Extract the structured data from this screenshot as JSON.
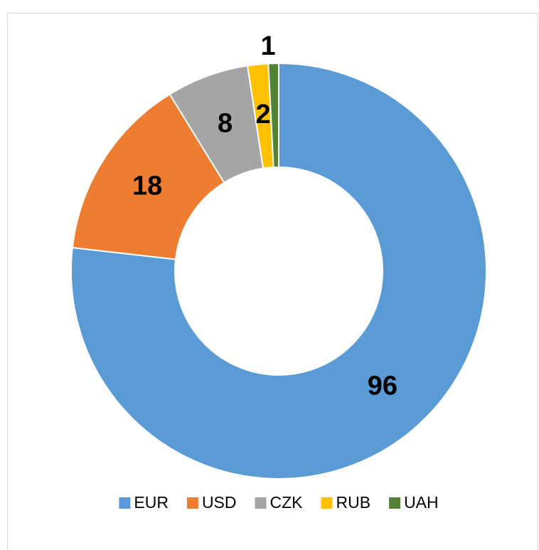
{
  "chart_data": {
    "type": "donut",
    "categories": [
      "EUR",
      "USD",
      "CZK",
      "RUB",
      "UAH"
    ],
    "values": [
      96,
      18,
      8,
      2,
      1
    ],
    "colors": [
      "#5b9bd5",
      "#ed7d31",
      "#a5a5a5",
      "#ffc000",
      "#548235"
    ],
    "legend": "bottom"
  }
}
